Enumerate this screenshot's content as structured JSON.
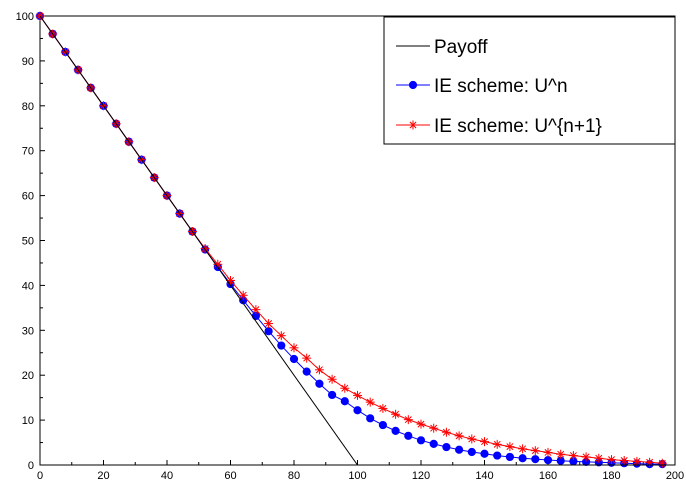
{
  "chart_data": {
    "type": "line",
    "title": "",
    "xlabel": "",
    "ylabel": "",
    "xlim": [
      0,
      200
    ],
    "ylim": [
      0,
      100
    ],
    "x_ticks": [
      0,
      20,
      40,
      60,
      80,
      100,
      120,
      140,
      160,
      180,
      200
    ],
    "y_ticks": [
      0,
      10,
      20,
      30,
      40,
      50,
      60,
      70,
      80,
      90,
      100
    ],
    "grid": false,
    "legend_position": "top-right",
    "series": [
      {
        "name": "Payoff",
        "color": "#000000",
        "marker": "none",
        "x": [
          0,
          100,
          200
        ],
        "y": [
          100,
          0,
          0
        ]
      },
      {
        "name": "IE scheme: U^n",
        "color": "#0000ff",
        "marker": "circle",
        "x": [
          0,
          4,
          8,
          12,
          16,
          20,
          24,
          28,
          32,
          36,
          40,
          44,
          48,
          52,
          56,
          60,
          64,
          68,
          72,
          76,
          80,
          84,
          88,
          92,
          96,
          100,
          104,
          108,
          112,
          116,
          120,
          124,
          128,
          132,
          136,
          140,
          144,
          148,
          152,
          156,
          160,
          164,
          168,
          172,
          176,
          180,
          184,
          188,
          192,
          196
        ],
        "y": [
          100,
          96,
          92,
          88,
          84,
          80,
          76,
          72,
          68,
          64,
          60,
          56,
          52,
          48,
          44.1,
          40.3,
          36.7,
          33.2,
          29.8,
          26.6,
          23.6,
          20.8,
          18.1,
          15.6,
          14.2,
          12.2,
          10.4,
          8.9,
          7.6,
          6.5,
          5.5,
          4.7,
          4.0,
          3.4,
          2.9,
          2.5,
          2.1,
          1.8,
          1.5,
          1.3,
          1.1,
          0.95,
          0.8,
          0.7,
          0.6,
          0.5,
          0.4,
          0.3,
          0.2,
          0.2
        ]
      },
      {
        "name": "IE scheme: U^{n+1}",
        "color": "#ff0000",
        "marker": "star",
        "x": [
          0,
          4,
          8,
          12,
          16,
          20,
          24,
          28,
          32,
          36,
          40,
          44,
          48,
          52,
          56,
          60,
          64,
          68,
          72,
          76,
          80,
          84,
          88,
          92,
          96,
          100,
          104,
          108,
          112,
          116,
          120,
          124,
          128,
          132,
          136,
          140,
          144,
          148,
          152,
          156,
          160,
          164,
          168,
          172,
          176,
          180,
          184,
          188,
          192,
          196
        ],
        "y": [
          100,
          96,
          92,
          88,
          84,
          80,
          76,
          72,
          68,
          64,
          60,
          56,
          52,
          48.2,
          44.7,
          41.1,
          37.8,
          34.6,
          31.5,
          28.8,
          26.1,
          23.8,
          21.2,
          19.1,
          17.1,
          15.5,
          14.0,
          12.6,
          11.3,
          10.1,
          9.1,
          8.2,
          7.3,
          6.5,
          5.8,
          5.2,
          4.6,
          4.1,
          3.6,
          3.2,
          2.8,
          2.4,
          2.1,
          1.8,
          1.5,
          1.2,
          1.0,
          0.8,
          0.6,
          0.4
        ]
      }
    ]
  }
}
